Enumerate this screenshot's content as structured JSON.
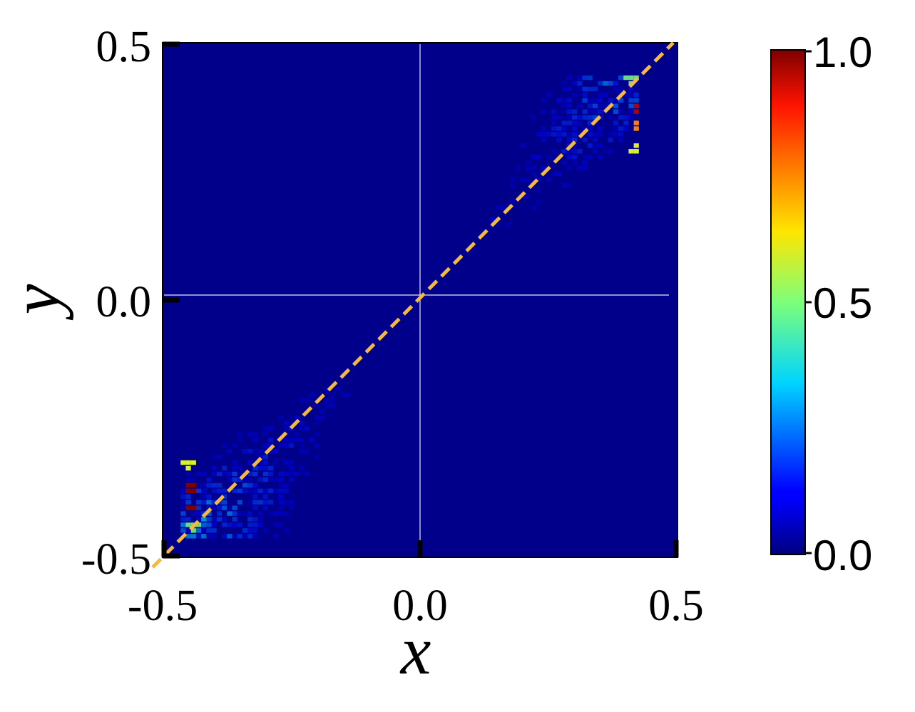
{
  "chart_data": {
    "type": "heatmap",
    "xlabel": "x",
    "ylabel": "y",
    "xlim": [
      -0.5,
      0.5
    ],
    "ylim": [
      -0.5,
      0.5
    ],
    "x_ticks": [
      "-0.5",
      "0.0",
      "0.5"
    ],
    "y_ticks": [
      "-0.5",
      "0.0",
      "0.5"
    ],
    "colorbar": {
      "range": [
        0.0,
        1.0
      ],
      "ticks": [
        "0.0",
        "0.5",
        "1.0"
      ],
      "colormap": "jet"
    },
    "reference_line": {
      "style": "dashed",
      "color": "#f5b942",
      "from": [
        -0.5,
        -0.5
      ],
      "to": [
        0.5,
        0.5
      ]
    },
    "crosshair": {
      "x": 0.0,
      "y": 0.0,
      "color": "#ffffff"
    },
    "background_color": "#00008b",
    "density_band": {
      "description_values": "intensity concentrated near diagonal y=x, peaks near ends",
      "hotspots": [
        {
          "x": -0.445,
          "y": -0.365,
          "value": 1.0
        },
        {
          "x": -0.445,
          "y": -0.405,
          "value": 1.0
        },
        {
          "x": 0.425,
          "y": 0.37,
          "value": 0.95
        },
        {
          "x": 0.425,
          "y": 0.335,
          "value": 0.75
        },
        {
          "x": 0.41,
          "y": 0.43,
          "value": 0.5
        },
        {
          "x": -0.45,
          "y": -0.32,
          "value": 0.6
        },
        {
          "x": -0.44,
          "y": -0.44,
          "value": 0.5
        },
        {
          "x": 0.42,
          "y": 0.29,
          "value": 0.6
        }
      ]
    }
  }
}
